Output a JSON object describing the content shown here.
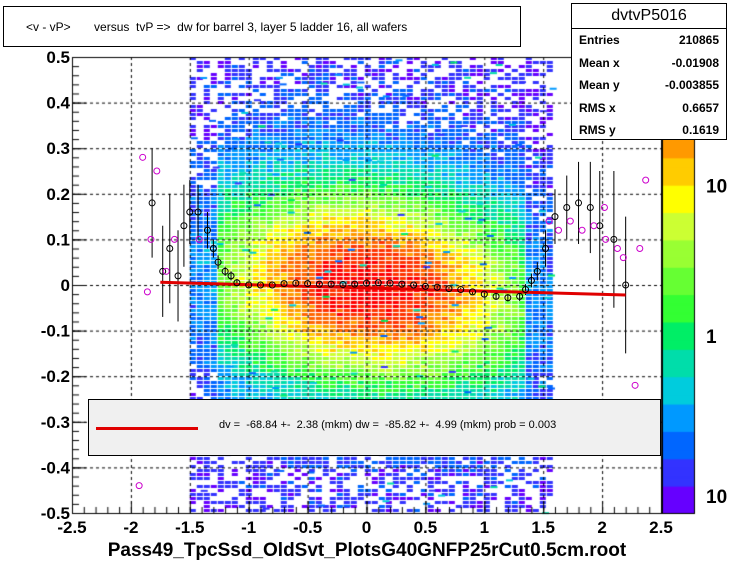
{
  "title": "<v - vP>       versus  tvP =>  dw for barrel 3, layer 5 ladder 16, all wafers",
  "stats": {
    "name": "dvtvP5016",
    "rows": [
      {
        "key": "Entries",
        "value": "210865"
      },
      {
        "key": "Mean x",
        "value": "-0.01908"
      },
      {
        "key": "Mean y",
        "value": "-0.003855"
      },
      {
        "key": "RMS x",
        "value": "0.6657"
      },
      {
        "key": "RMS y",
        "value": "0.1619"
      }
    ]
  },
  "fit_text": "dv =  -68.84 +-  2.38 (mkm) dw =  -85.82 +-  4.99 (mkm) prob = 0.003",
  "xlabel": "Pass49_TpcSsd_OldSvt_PlotsG40GNFP25rCut0.5cm.root",
  "colors": {
    "fit": "#e00000",
    "profile_black": "#000000",
    "profile_magenta": "#cc00cc"
  },
  "chart_data": {
    "type": "heatmap",
    "xlim": [
      -2.5,
      2.5
    ],
    "ylim": [
      -0.5,
      0.5
    ],
    "xticks": [
      "-2.5",
      "-2",
      "-1.5",
      "-1",
      "-0.5",
      "0",
      "0.5",
      "1",
      "1.5",
      "2",
      "2.5"
    ],
    "yticks": [
      "0.5",
      "0.4",
      "0.3",
      "0.2",
      "0.1",
      "0",
      "-0.1",
      "-0.2",
      "-0.3",
      "-0.4",
      "-0.5"
    ],
    "colorbar_ticks": [
      "10",
      "1",
      "10"
    ],
    "colorbar_log": true,
    "grid": true,
    "fit_line": {
      "x": [
        -1.75,
        2.2
      ],
      "y": [
        0.006,
        -0.022
      ]
    },
    "profile_black": [
      {
        "x": -1.73,
        "y": 0.03,
        "e": 0.1
      },
      {
        "x": -1.67,
        "y": 0.08,
        "e": 0.12
      },
      {
        "x": -1.55,
        "y": 0.13,
        "e": 0.09
      },
      {
        "x": -1.5,
        "y": 0.16,
        "e": 0.07
      },
      {
        "x": -1.43,
        "y": 0.16,
        "e": 0.06
      },
      {
        "x": -1.35,
        "y": 0.12,
        "e": 0.04
      },
      {
        "x": -1.3,
        "y": 0.08,
        "e": 0.02
      },
      {
        "x": -1.26,
        "y": 0.05,
        "e": 0.015
      },
      {
        "x": -1.2,
        "y": 0.03,
        "e": 0.01
      },
      {
        "x": -1.15,
        "y": 0.02,
        "e": 0.01
      },
      {
        "x": -1.1,
        "y": 0.005,
        "e": 0.008
      },
      {
        "x": -1.0,
        "y": 0.0,
        "e": 0.005
      },
      {
        "x": -0.9,
        "y": 0.0,
        "e": 0.004
      },
      {
        "x": -0.8,
        "y": 0.0,
        "e": 0.004
      },
      {
        "x": -0.7,
        "y": 0.003,
        "e": 0.003
      },
      {
        "x": -0.6,
        "y": 0.004,
        "e": 0.003
      },
      {
        "x": -0.5,
        "y": 0.003,
        "e": 0.003
      },
      {
        "x": -0.4,
        "y": 0.002,
        "e": 0.003
      },
      {
        "x": -0.3,
        "y": 0.002,
        "e": 0.003
      },
      {
        "x": -0.2,
        "y": 0.001,
        "e": 0.003
      },
      {
        "x": -0.1,
        "y": 0.002,
        "e": 0.003
      },
      {
        "x": 0.0,
        "y": 0.004,
        "e": 0.003
      },
      {
        "x": 0.1,
        "y": 0.005,
        "e": 0.003
      },
      {
        "x": 0.2,
        "y": 0.004,
        "e": 0.003
      },
      {
        "x": 0.3,
        "y": 0.002,
        "e": 0.003
      },
      {
        "x": 0.4,
        "y": 0.0,
        "e": 0.003
      },
      {
        "x": 0.5,
        "y": -0.003,
        "e": 0.003
      },
      {
        "x": 0.6,
        "y": -0.005,
        "e": 0.004
      },
      {
        "x": 0.7,
        "y": -0.008,
        "e": 0.004
      },
      {
        "x": 0.8,
        "y": -0.01,
        "e": 0.004
      },
      {
        "x": 0.9,
        "y": -0.015,
        "e": 0.005
      },
      {
        "x": 1.0,
        "y": -0.02,
        "e": 0.005
      },
      {
        "x": 1.1,
        "y": -0.025,
        "e": 0.006
      },
      {
        "x": 1.2,
        "y": -0.028,
        "e": 0.008
      },
      {
        "x": 1.3,
        "y": -0.025,
        "e": 0.01
      },
      {
        "x": 1.35,
        "y": -0.01,
        "e": 0.012
      },
      {
        "x": 1.4,
        "y": 0.01,
        "e": 0.015
      },
      {
        "x": 1.45,
        "y": 0.03,
        "e": 0.02
      },
      {
        "x": 1.52,
        "y": 0.08,
        "e": 0.04
      },
      {
        "x": 1.6,
        "y": 0.15,
        "e": 0.06
      },
      {
        "x": 1.7,
        "y": 0.17,
        "e": 0.07
      },
      {
        "x": 1.8,
        "y": 0.18,
        "e": 0.09
      },
      {
        "x": 1.9,
        "y": 0.17,
        "e": 0.1
      },
      {
        "x": 1.98,
        "y": 0.13,
        "e": 0.12
      },
      {
        "x": 2.1,
        "y": 0.1,
        "e": 0.15
      },
      {
        "x": 2.2,
        "y": 0.0,
        "e": 0.15
      },
      {
        "x": -1.82,
        "y": 0.18,
        "e": 0.12
      },
      {
        "x": -1.6,
        "y": 0.02,
        "e": 0.1
      }
    ],
    "profile_magenta": [
      {
        "x": -1.9,
        "y": 0.28
      },
      {
        "x": -1.86,
        "y": -0.015
      },
      {
        "x": -1.83,
        "y": 0.1
      },
      {
        "x": -1.78,
        "y": 0.25
      },
      {
        "x": -1.7,
        "y": 0.03
      },
      {
        "x": -1.63,
        "y": 0.1
      },
      {
        "x": -1.42,
        "y": 0.1
      },
      {
        "x": -1.93,
        "y": -0.44
      },
      {
        "x": 1.55,
        "y": 0.14
      },
      {
        "x": 1.63,
        "y": 0.12
      },
      {
        "x": 1.73,
        "y": 0.14
      },
      {
        "x": 1.83,
        "y": 0.12
      },
      {
        "x": 1.93,
        "y": 0.13
      },
      {
        "x": 2.03,
        "y": 0.1
      },
      {
        "x": 2.13,
        "y": 0.08
      },
      {
        "x": 2.18,
        "y": 0.06
      },
      {
        "x": 2.32,
        "y": 0.08
      },
      {
        "x": 2.37,
        "y": 0.23
      },
      {
        "x": 2.28,
        "y": -0.22
      },
      {
        "x": 2.02,
        "y": 0.17
      }
    ]
  }
}
